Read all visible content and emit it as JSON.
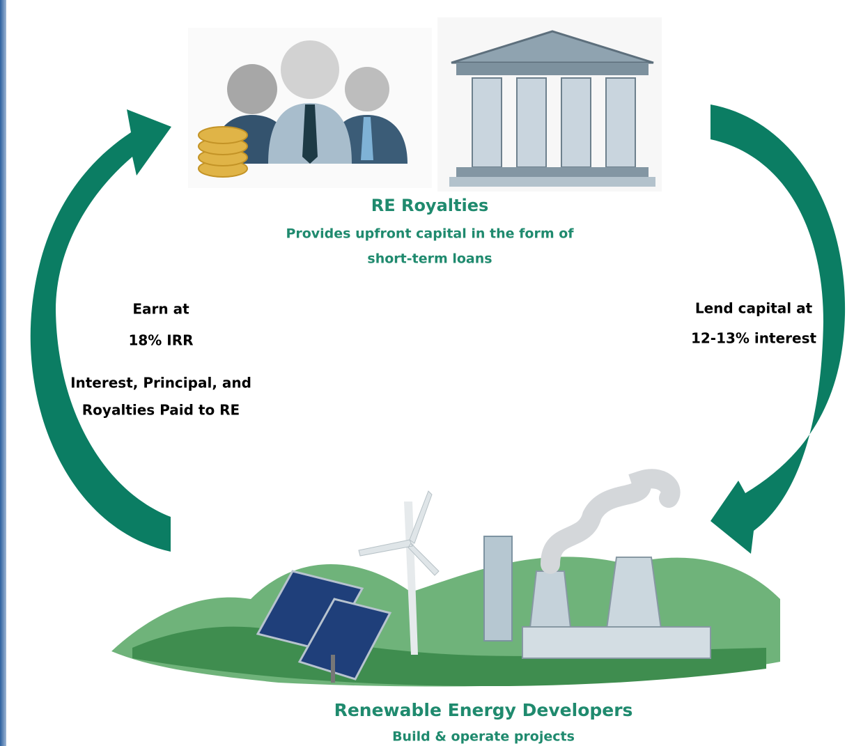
{
  "top_node": {
    "title": "RE Royalties",
    "description": [
      "Provides upfront capital in the form of",
      "short-term loans"
    ]
  },
  "left_flow": {
    "return": [
      "Earn at",
      "18% IRR"
    ],
    "payments": [
      "Interest, Principal, and",
      "Royalties Paid to RE"
    ]
  },
  "right_flow": {
    "lending": [
      "Lend capital at",
      "12-13% interest"
    ]
  },
  "bottom_node": {
    "title": "Renewable Energy Developers",
    "description": "Build & operate projects"
  }
}
